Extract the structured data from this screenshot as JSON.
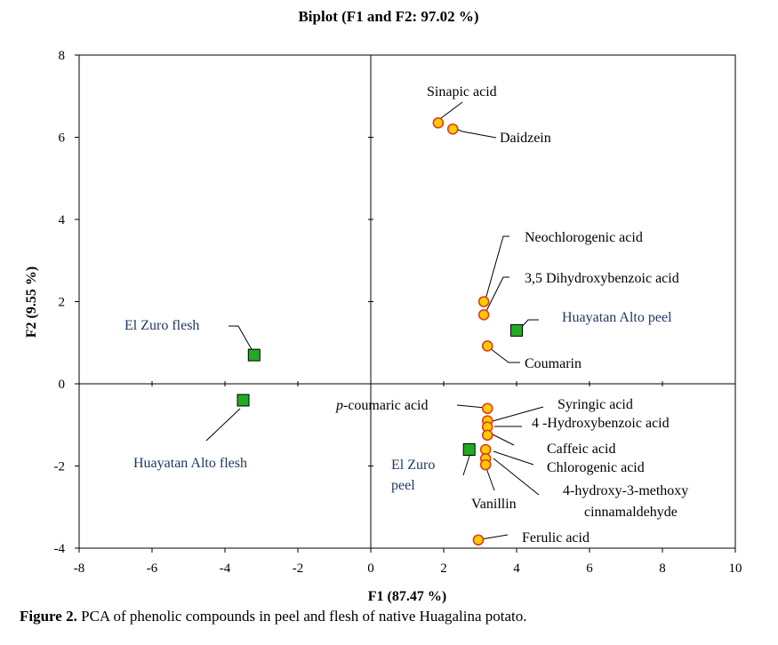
{
  "chart_data": {
    "type": "scatter",
    "title": "Biplot (F1  and F2: 97.02 %)",
    "xlabel": "F1 (87.47 %)",
    "ylabel": "F2 (9.55 %)",
    "xlim": [
      -8,
      10
    ],
    "ylim": [
      -4,
      8
    ],
    "xticks": [
      "-8",
      "-6",
      "-4",
      "-2",
      "0",
      "2",
      "4",
      "6",
      "8",
      "10"
    ],
    "yticks": [
      "-4",
      "-2",
      "0",
      "2",
      "4",
      "6",
      "8"
    ],
    "series": [
      {
        "type": "variables",
        "color": "#ffcc00",
        "points": [
          {
            "label": "Sinapic acid",
            "x": 1.85,
            "y": 6.35
          },
          {
            "label": "Daidzein",
            "x": 2.25,
            "y": 6.2
          },
          {
            "label": "Neochlorogenic acid",
            "x": 3.1,
            "y": 2.0
          },
          {
            "label": "3,5 Dihydroxybenzoic acid",
            "x": 3.1,
            "y": 1.68
          },
          {
            "label": "Coumarin",
            "x": 3.2,
            "y": 0.92
          },
          {
            "label": "p-coumaric acid",
            "x": 3.2,
            "y": -0.6
          },
          {
            "label": "Syringic acid",
            "x": 3.2,
            "y": -0.9
          },
          {
            "label": "4 -Hydroxybenzoic acid",
            "x": 3.2,
            "y": -1.05
          },
          {
            "label": "Caffeic acid",
            "x": 3.2,
            "y": -1.25
          },
          {
            "label": "Chlorogenic acid",
            "x": 3.15,
            "y": -1.6
          },
          {
            "label": "4-hydroxy-3-methoxy cinnamaldehyde",
            "x": 3.15,
            "y": -1.82
          },
          {
            "label": "Vanillin",
            "x": 3.15,
            "y": -1.97
          },
          {
            "label": "Ferulic acid",
            "x": 2.95,
            "y": -3.8
          }
        ]
      },
      {
        "type": "observations",
        "color": "#22aa22",
        "points": [
          {
            "label": "El Zuro flesh",
            "x": -3.2,
            "y": 0.7
          },
          {
            "label": "Huayatan Alto  flesh",
            "x": -3.5,
            "y": -0.4
          },
          {
            "label": "Huayatan Alto peel",
            "x": 4.0,
            "y": 1.3
          },
          {
            "label": "El Zuro peel",
            "x": 2.7,
            "y": -1.6
          }
        ]
      }
    ]
  },
  "caption": {
    "prefix": "Figure 2.",
    "text": " PCA of phenolic compounds in peel and flesh of native Huagalina potato."
  }
}
